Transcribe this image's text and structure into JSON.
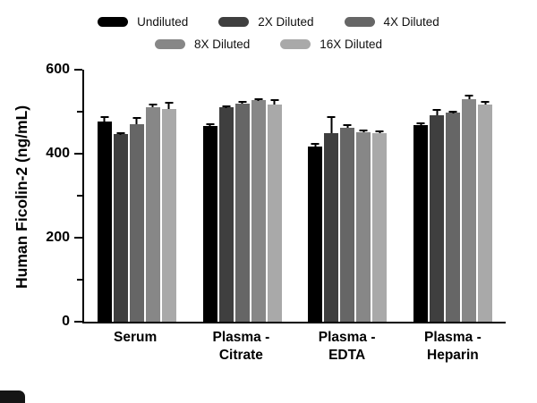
{
  "chart_data": {
    "type": "bar",
    "title": "",
    "ylabel": "Human Ficolin-2 (ng/mL)",
    "xlabel": "",
    "ylim": [
      0,
      600
    ],
    "yticks": [
      0,
      200,
      400,
      600
    ],
    "minor_yticks": [
      100,
      300,
      500
    ],
    "grid": false,
    "legend_position": "top",
    "categories": [
      "Serum",
      "Plasma -\nCitrate",
      "Plasma -\nEDTA",
      "Plasma -\nHeparin"
    ],
    "series": [
      {
        "name": "Undiluted",
        "color": "#000000",
        "values": [
          477,
          467,
          416,
          469
        ],
        "errors": [
          12,
          6,
          9,
          6
        ]
      },
      {
        "name": "2X Diluted",
        "color": "#3f3f3f",
        "values": [
          446,
          511,
          449,
          491
        ],
        "errors": [
          6,
          5,
          40,
          16
        ]
      },
      {
        "name": "4X Diluted",
        "color": "#666666",
        "values": [
          470,
          520,
          462,
          497
        ],
        "errors": [
          17,
          6,
          9,
          5
        ]
      },
      {
        "name": "8X Diluted",
        "color": "#878787",
        "values": [
          511,
          527,
          452,
          530
        ],
        "errors": [
          8,
          5,
          6,
          10
        ]
      },
      {
        "name": "16X Diluted",
        "color": "#a9a9a9",
        "values": [
          506,
          517,
          448,
          517
        ],
        "errors": [
          17,
          13,
          8,
          8
        ]
      }
    ]
  }
}
